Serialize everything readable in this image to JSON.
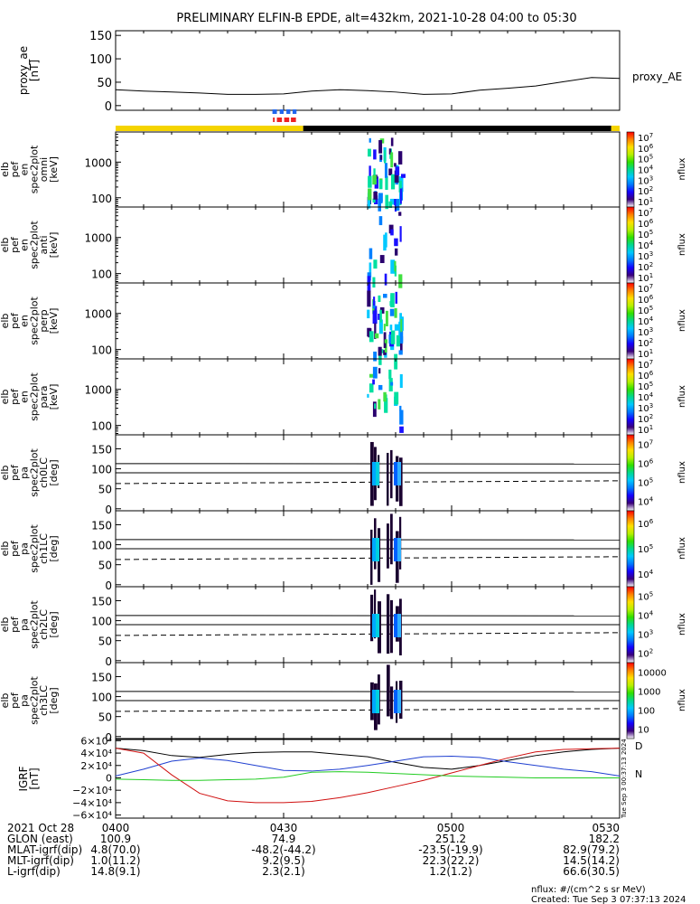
{
  "title": "PRELIMINARY ELFIN-B EPDE, alt=432km, 2021-10-28 04:00 to 05:30",
  "colors": {
    "frame": "#000000",
    "bar_yellow": "#f5d400",
    "bar_black": "#000000",
    "marker_blue": "#2266ee",
    "marker_red": "#ee2222",
    "grf_black": "#000000",
    "grf_blue": "#1f3fd0",
    "grf_red": "#d01010",
    "grf_green": "#22cc22"
  },
  "chart_data": [
    {
      "type": "line",
      "name": "proxy_ae",
      "ylabel": "proxy_ae\n[nT]",
      "legend": "proxy_AE",
      "ylim": [
        -10,
        160
      ],
      "yticks": [
        "0",
        "50",
        "100",
        "150"
      ],
      "ytick_values": [
        0,
        50,
        100,
        150
      ],
      "x_minutes": [
        0,
        5,
        10,
        15,
        20,
        25,
        30,
        35,
        40,
        45,
        50,
        55,
        60,
        65,
        70,
        75,
        80,
        85,
        90
      ],
      "values": [
        34,
        31,
        29,
        27,
        24,
        24,
        25,
        31,
        34,
        32,
        29,
        24,
        25,
        33,
        37,
        42,
        51,
        60,
        58
      ]
    },
    {
      "type": "bar",
      "name": "quality-flags",
      "segments": [
        {
          "start_min": 0,
          "end_min": 33.5,
          "color": "yellow"
        },
        {
          "start_min": 33.5,
          "end_min": 88.5,
          "color": "black"
        },
        {
          "start_min": 88.5,
          "end_min": 90,
          "color": "yellow"
        }
      ],
      "blue_markers_min": [
        [
          28,
          28.8
        ],
        [
          29.3,
          30
        ],
        [
          30.5,
          31.2
        ],
        [
          31.6,
          32.3
        ]
      ],
      "red_markers_min": [
        [
          28.1,
          28.4
        ],
        [
          28.8,
          29.7
        ],
        [
          30.1,
          31
        ],
        [
          31.3,
          32.2
        ]
      ]
    },
    {
      "type": "heatmap",
      "name": "spec-omni",
      "ylabel": "elb\npef\nen\nspec2plot\nomni\n[keV]",
      "yticks": [
        "100",
        "1000"
      ],
      "ytick_values": [
        100,
        1000
      ],
      "ylim": [
        55,
        7000
      ],
      "zlabel": "nflux",
      "ztick_exponents": [
        "1",
        "2",
        "3",
        "4",
        "5",
        "6",
        "7"
      ]
    },
    {
      "type": "heatmap",
      "name": "spec-anti",
      "ylabel": "elb\npef\nen\nspec2plot\nanti\n[keV]",
      "yticks": [
        "100",
        "1000"
      ],
      "ytick_values": [
        100,
        1000
      ],
      "ylim": [
        55,
        7000
      ],
      "zlabel": "nflux",
      "ztick_exponents": [
        "1",
        "2",
        "3",
        "4",
        "5",
        "6",
        "7"
      ]
    },
    {
      "type": "heatmap",
      "name": "spec-perp",
      "ylabel": "elb\npef\nen\nspec2plot\nperp\n[keV]",
      "yticks": [
        "100",
        "1000"
      ],
      "ytick_values": [
        100,
        1000
      ],
      "ylim": [
        55,
        7000
      ],
      "zlabel": "nflux",
      "ztick_exponents": [
        "1",
        "2",
        "3",
        "4",
        "5",
        "6",
        "7"
      ]
    },
    {
      "type": "heatmap",
      "name": "spec-para",
      "ylabel": "elb\npef\nen\nspec2plot\npara\n[keV]",
      "yticks": [
        "100",
        "1000"
      ],
      "ytick_values": [
        100,
        1000
      ],
      "ylim": [
        55,
        7000
      ],
      "zlabel": "nflux",
      "ztick_exponents": [
        "1",
        "2",
        "3",
        "4",
        "5",
        "6",
        "7"
      ]
    },
    {
      "type": "heatmap",
      "name": "pa-ch0",
      "ylabel": "elb\npef\npa\nspec2plot\nch0LC\n[deg]",
      "yticks": [
        "0",
        "50",
        "100",
        "150"
      ],
      "ytick_values": [
        0,
        50,
        100,
        150
      ],
      "ylim": [
        -5,
        185
      ],
      "zlabel": "nflux",
      "ztick_exponents": [
        "4",
        "5",
        "6",
        "7"
      ]
    },
    {
      "type": "heatmap",
      "name": "pa-ch1",
      "ylabel": "elb\npef\npa\nspec2plot\nch1LC\n[deg]",
      "yticks": [
        "0",
        "50",
        "100",
        "150"
      ],
      "ytick_values": [
        0,
        50,
        100,
        150
      ],
      "ylim": [
        -5,
        185
      ],
      "zlabel": "nflux",
      "ztick_exponents": [
        "4",
        "5",
        "6"
      ]
    },
    {
      "type": "heatmap",
      "name": "pa-ch2",
      "ylabel": "elb\npef\npa\nspec2plot\nch2LC\n[deg]",
      "yticks": [
        "0",
        "50",
        "100",
        "150"
      ],
      "ytick_values": [
        0,
        50,
        100,
        150
      ],
      "ylim": [
        -5,
        185
      ],
      "zlabel": "nflux",
      "ztick_exponents": [
        "2",
        "3",
        "4",
        "5"
      ]
    },
    {
      "type": "heatmap",
      "name": "pa-ch3",
      "ylabel": "elb\npef\npa\nspec2plot\nch3LC\n[deg]",
      "yticks": [
        "0",
        "50",
        "100",
        "150"
      ],
      "ytick_values": [
        0,
        50,
        100,
        150
      ],
      "ylim": [
        -5,
        185
      ],
      "zlabel": "nflux",
      "ztick_labels": [
        "10",
        "100",
        "1000",
        "10000"
      ]
    },
    {
      "type": "line",
      "name": "igrf",
      "ylabel": "IGRF\n[nT]",
      "ylim": [
        -65000,
        62000
      ],
      "yticks": [
        "−6×10⁴",
        "−4×10⁴",
        "−2×10⁴",
        "0",
        "2×10⁴",
        "4×10⁴",
        "6×10⁴"
      ],
      "ytick_values": [
        -60000,
        -40000,
        -20000,
        0,
        20000,
        40000,
        60000
      ],
      "legend_labels": [
        "D",
        "N"
      ],
      "x_minutes": [
        0,
        5,
        10,
        15,
        20,
        25,
        30,
        35,
        40,
        45,
        50,
        55,
        60,
        65,
        70,
        75,
        80,
        85,
        90
      ],
      "series": [
        {
          "color": "black",
          "values": [
            48000,
            44000,
            36000,
            33000,
            38000,
            41000,
            42000,
            42000,
            38000,
            34000,
            25000,
            17000,
            14000,
            20000,
            28000,
            36000,
            42000,
            46000,
            48000
          ]
        },
        {
          "color": "blue",
          "values": [
            3000,
            14000,
            27000,
            32000,
            28000,
            20000,
            12000,
            11000,
            14000,
            20000,
            27000,
            34000,
            35000,
            33000,
            26000,
            20000,
            14000,
            10000,
            3000
          ]
        },
        {
          "color": "red",
          "values": [
            48000,
            40000,
            5000,
            -25000,
            -37000,
            -40000,
            -40000,
            -38000,
            -32000,
            -24000,
            -14000,
            -4000,
            8000,
            20000,
            32000,
            42000,
            46000,
            47000,
            48000
          ]
        },
        {
          "color": "green",
          "values": [
            -2000,
            -3000,
            -4000,
            -4000,
            -3000,
            -2000,
            1000,
            9000,
            10000,
            9000,
            7000,
            5000,
            3000,
            2000,
            1000,
            0,
            0,
            0,
            0
          ]
        }
      ]
    }
  ],
  "orbit_table": {
    "labels": [
      "2021 Oct 28",
      "GLON (east)",
      "MLAT-igrf(dip)",
      "MLT-igrf(dip)",
      "L-igrf(dip)"
    ],
    "columns": [
      [
        "0400",
        "100.9",
        "4.8(70.0)",
        "1.0(11.2)",
        "14.8(9.1)"
      ],
      [
        "0430",
        "74.9",
        "-48.2(-44.2)",
        "9.2(9.5)",
        "2.3(2.1)"
      ],
      [
        "0500",
        "251.2",
        "-23.5(-19.9)",
        "22.3(22.2)",
        "1.2(1.2)"
      ],
      [
        "0530",
        "182.2",
        "82.9(79.2)",
        "14.5(14.2)",
        "66.6(30.5)"
      ]
    ]
  },
  "footer": {
    "units": "nflux: #/(cm^2 s sr MeV)",
    "created": "Created: Tue Sep  3 07:37:13 2024",
    "side_stamp": "Tue Sep  3 00:37:13 2024"
  }
}
